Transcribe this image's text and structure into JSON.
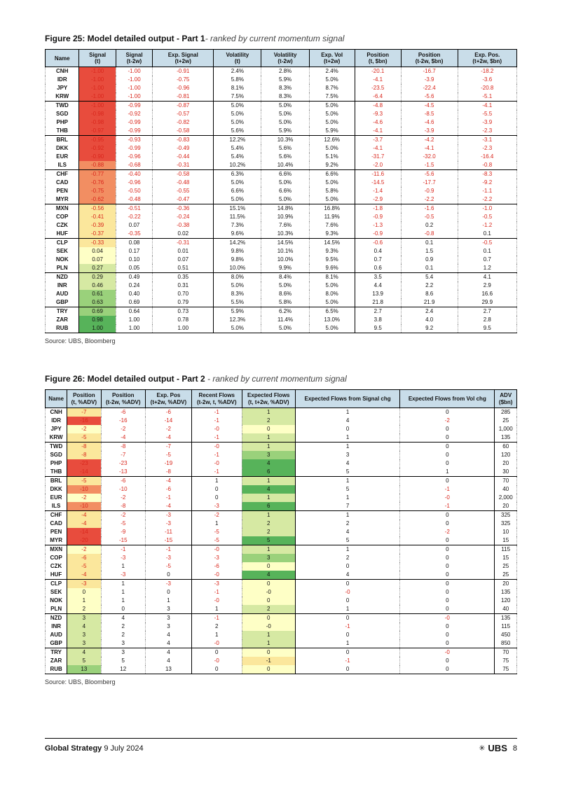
{
  "figure25": {
    "title_bold": "Figure 25: Model detailed output - Part 1",
    "title_sub": "- ranked by current momentum signal",
    "columns": [
      "Name",
      "Signal (t)",
      "Signal (t-2w)",
      "Exp. Signal (t+2w)",
      "Volatility (t)",
      "Volatility (t-2w)",
      "Exp. Vol (t+2w)",
      "Position (t, $bn)",
      "Position (t-2w, $bn)",
      "Exp. Pos. (t+2w, $bn)"
    ],
    "col_sep_after": [
      0,
      3,
      6
    ],
    "bg_rules": {
      "col": 1
    },
    "num_fmt": [
      null,
      "2f",
      "2f",
      "2f",
      "pct",
      "pct",
      "pct",
      "1f",
      "1f",
      "1f"
    ],
    "neg_red_cols": [
      1,
      2,
      3,
      7,
      8,
      9
    ],
    "groups": [
      [
        [
          "CNH",
          -1.0,
          -1.0,
          -0.91,
          2.4,
          2.8,
          2.4,
          -20.1,
          -16.7,
          -18.2
        ],
        [
          "IDR",
          -1.0,
          -1.0,
          -0.75,
          5.8,
          5.9,
          5.0,
          -4.1,
          -3.9,
          -3.6
        ],
        [
          "JPY",
          -1.0,
          -1.0,
          -0.96,
          8.1,
          8.3,
          8.7,
          -23.5,
          -22.4,
          -20.8
        ],
        [
          "KRW",
          -1.0,
          -1.0,
          -0.81,
          7.5,
          8.3,
          7.5,
          -6.4,
          -5.6,
          -5.1
        ]
      ],
      [
        [
          "TWD",
          -1.0,
          -0.99,
          -0.87,
          5.0,
          5.0,
          5.0,
          -4.8,
          -4.5,
          -4.1
        ],
        [
          "SGD",
          -0.98,
          -0.92,
          -0.57,
          5.0,
          5.0,
          5.0,
          -9.3,
          -8.5,
          -5.5
        ],
        [
          "PHP",
          -0.98,
          -0.99,
          -0.82,
          5.0,
          5.0,
          5.0,
          -4.6,
          -4.6,
          -3.9
        ],
        [
          "THB",
          -0.97,
          -0.99,
          -0.58,
          5.6,
          5.9,
          5.9,
          -4.1,
          -3.9,
          -2.3
        ]
      ],
      [
        [
          "BRL",
          -0.95,
          -0.93,
          -0.83,
          12.2,
          10.3,
          12.6,
          -3.7,
          -4.2,
          -3.1
        ],
        [
          "DKK",
          -0.92,
          -0.99,
          -0.49,
          5.4,
          5.6,
          5.0,
          -4.1,
          -4.1,
          -2.3
        ],
        [
          "EUR",
          -0.9,
          -0.96,
          -0.44,
          5.4,
          5.6,
          5.1,
          -31.7,
          -32.0,
          -16.4
        ],
        [
          "ILS",
          -0.88,
          -0.68,
          -0.31,
          10.2,
          10.4,
          9.2,
          -2.0,
          -1.5,
          -0.8
        ]
      ],
      [
        [
          "CHF",
          -0.77,
          -0.4,
          -0.58,
          6.3,
          6.6,
          6.6,
          -11.6,
          -5.6,
          -8.3
        ],
        [
          "CAD",
          -0.76,
          -0.96,
          -0.48,
          5.0,
          5.0,
          5.0,
          -14.5,
          -17.7,
          -9.2
        ],
        [
          "PEN",
          -0.75,
          -0.5,
          -0.55,
          6.6,
          6.6,
          5.8,
          -1.4,
          -0.9,
          -1.1
        ],
        [
          "MYR",
          -0.62,
          -0.48,
          -0.47,
          5.0,
          5.0,
          5.0,
          -2.9,
          -2.2,
          -2.2
        ]
      ],
      [
        [
          "MXN",
          -0.56,
          -0.51,
          -0.36,
          15.1,
          14.8,
          16.8,
          -1.8,
          -1.6,
          -1.0
        ],
        [
          "COP",
          -0.41,
          -0.22,
          -0.24,
          11.5,
          10.9,
          11.9,
          -0.9,
          -0.5,
          -0.5
        ],
        [
          "CZK",
          -0.39,
          0.07,
          -0.38,
          7.3,
          7.6,
          7.6,
          -1.3,
          0.2,
          -1.2
        ],
        [
          "HUF",
          -0.37,
          -0.35,
          0.02,
          9.6,
          10.3,
          9.3,
          -0.9,
          -0.8,
          0.1
        ]
      ],
      [
        [
          "CLP",
          -0.33,
          0.08,
          -0.31,
          14.2,
          14.5,
          14.5,
          -0.6,
          0.1,
          -0.5
        ],
        [
          "SEK",
          0.04,
          0.17,
          0.01,
          9.8,
          10.1,
          9.3,
          0.4,
          1.5,
          0.1
        ],
        [
          "NOK",
          0.07,
          0.1,
          0.07,
          9.8,
          10.0,
          9.5,
          0.7,
          0.9,
          0.7
        ],
        [
          "PLN",
          0.27,
          0.05,
          0.51,
          10.0,
          9.9,
          9.6,
          0.6,
          0.1,
          1.2
        ]
      ],
      [
        [
          "NZD",
          0.29,
          0.49,
          0.35,
          8.0,
          8.4,
          8.1,
          3.5,
          5.4,
          4.1
        ],
        [
          "INR",
          0.46,
          0.24,
          0.31,
          5.0,
          5.0,
          5.0,
          4.4,
          2.2,
          2.9
        ],
        [
          "AUD",
          0.61,
          0.4,
          0.7,
          8.3,
          8.6,
          8.0,
          13.9,
          8.6,
          16.6
        ],
        [
          "GBP",
          0.63,
          0.69,
          0.79,
          5.5,
          5.8,
          5.0,
          21.8,
          21.9,
          29.9
        ]
      ],
      [
        [
          "TRY",
          0.69,
          0.64,
          0.73,
          5.9,
          6.2,
          6.5,
          2.7,
          2.4,
          2.7
        ],
        [
          "ZAR",
          0.98,
          1.0,
          0.78,
          12.3,
          11.4,
          13.0,
          3.8,
          4.0,
          2.8
        ],
        [
          "RUB",
          1.0,
          1.0,
          1.0,
          5.0,
          5.0,
          5.0,
          9.5,
          9.2,
          9.5
        ]
      ]
    ],
    "source": "Source: UBS, Bloomberg"
  },
  "figure26": {
    "title_bold": "Figure 26: Model detailed output - Part 2",
    "title_sub": " - ranked by current momentum signal",
    "columns": [
      "Name",
      "Position (t, %ADV)",
      "Position (t-2w, %ADV)",
      "Exp. Pos (t+2w, %ADV)",
      "Recent Flows (t-2w, t, %ADV)",
      "Expected Flows (t, t+2w, %ADV)",
      "Expected Flows from Signal chg",
      "Expected Flows from Vol chg",
      "ADV ($bn)"
    ],
    "col_sep_after": [
      0,
      3,
      5,
      7
    ],
    "bg_cols": [
      1,
      5
    ],
    "num_fmt": [
      null,
      "int",
      "int",
      "int",
      "int",
      "int",
      "int",
      "int",
      "plain"
    ],
    "neg_red_cols": [
      1,
      2,
      3,
      4,
      6,
      7
    ],
    "groups": [
      [
        [
          "CNH",
          -7,
          -6,
          -6,
          -1,
          1,
          1,
          0,
          285
        ],
        [
          "IDR",
          -16,
          -16,
          -14,
          -1,
          2,
          4,
          -2,
          25
        ],
        [
          "JPY",
          -2,
          -2,
          -2,
          0,
          0,
          0,
          0,
          "1,000"
        ],
        [
          "KRW",
          -5,
          -4,
          -4,
          -1,
          1,
          1,
          0,
          135
        ]
      ],
      [
        [
          "TWD",
          -8,
          -8,
          -7,
          0,
          1,
          1,
          0,
          60
        ],
        [
          "SGD",
          -8,
          -7,
          -5,
          -1,
          3,
          3,
          0,
          120
        ],
        [
          "PHP",
          -23,
          -23,
          -19,
          0,
          4,
          4,
          0,
          20
        ],
        [
          "THB",
          -14,
          -13,
          -8,
          -1,
          6,
          5,
          1,
          30
        ]
      ],
      [
        [
          "BRL",
          -5,
          -6,
          -4,
          1,
          1,
          1,
          0,
          70
        ],
        [
          "DKK",
          -10,
          -10,
          -6,
          0,
          4,
          5,
          -1,
          40
        ],
        [
          "EUR",
          -2,
          -2,
          -1,
          0,
          1,
          1,
          0,
          "2,000"
        ],
        [
          "ILS",
          -10,
          -8,
          -4,
          -3,
          6,
          7,
          -1,
          20
        ]
      ],
      [
        [
          "CHF",
          -4,
          -2,
          -3,
          -2,
          1,
          1,
          0,
          325
        ],
        [
          "CAD",
          -4,
          -5,
          -3,
          1,
          2,
          2,
          0,
          325
        ],
        [
          "PEN",
          -14,
          -9,
          -11,
          -5,
          2,
          4,
          -2,
          10
        ],
        [
          "MYR",
          -20,
          -15,
          -15,
          -5,
          5,
          5,
          0,
          15
        ]
      ],
      [
        [
          "MXN",
          -2,
          -1,
          -1,
          0,
          1,
          1,
          0,
          115
        ],
        [
          "COP",
          -6,
          -3,
          -3,
          -3,
          3,
          2,
          0,
          15
        ],
        [
          "CZK",
          -5,
          1,
          -5,
          -6,
          0,
          0,
          0,
          25
        ],
        [
          "HUF",
          -4,
          -3,
          0,
          0,
          4,
          4,
          0,
          25
        ]
      ],
      [
        [
          "CLP",
          -3,
          1,
          -3,
          -3,
          0,
          0,
          0,
          20
        ],
        [
          "SEK",
          0,
          1,
          0,
          -1,
          0,
          0,
          0,
          135
        ],
        [
          "NOK",
          1,
          1,
          1,
          0,
          0,
          0,
          0,
          120
        ],
        [
          "PLN",
          2,
          0,
          3,
          1,
          2,
          1,
          0,
          40
        ]
      ],
      [
        [
          "NZD",
          3,
          4,
          3,
          -1,
          0,
          0,
          0,
          135
        ],
        [
          "INR",
          4,
          2,
          3,
          2,
          0,
          -1,
          0,
          115
        ],
        [
          "AUD",
          3,
          2,
          4,
          1,
          1,
          0,
          0,
          450
        ],
        [
          "GBP",
          3,
          3,
          4,
          0,
          1,
          1,
          0,
          850
        ]
      ],
      [
        [
          "TRY",
          4,
          3,
          4,
          0,
          0,
          0,
          0,
          70
        ],
        [
          "ZAR",
          5,
          5,
          4,
          0,
          -1,
          -1,
          0,
          75
        ],
        [
          "RUB",
          13,
          12,
          13,
          0,
          0,
          0,
          0,
          75
        ]
      ]
    ],
    "source": "Source: UBS, Bloomberg"
  },
  "heat_palette": {
    "neg3": "#e84c3d",
    "neg2": "#f28e62",
    "neg1": "#fbe79c",
    "zero": "#feffc6",
    "pos1": "#d6e9a3",
    "pos2": "#9ad17b",
    "pos3": "#57b35a"
  },
  "footer": {
    "left_bold": "Global Strategy",
    "left_rest": "  9 July 2024",
    "brand": "UBS",
    "page": "8"
  }
}
